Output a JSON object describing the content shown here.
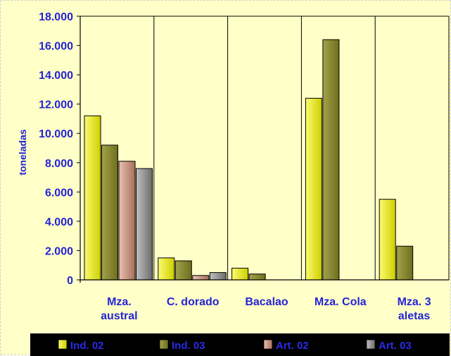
{
  "chart_data": {
    "type": "bar",
    "ylabel": "toneladas",
    "ylim": [
      0,
      18000
    ],
    "y_ticks": [
      "0",
      "2.000",
      "4.000",
      "6.000",
      "8.000",
      "10.000",
      "12.000",
      "14.000",
      "16.000",
      "18.000"
    ],
    "y_tick_values": [
      0,
      2000,
      4000,
      6000,
      8000,
      10000,
      12000,
      14000,
      16000,
      18000
    ],
    "categories": [
      "Mza. austral",
      "C. dorado",
      "Bacalao",
      "Mza. Cola",
      "Mza. 3 aletas"
    ],
    "category_lines": [
      [
        "Mza.",
        "austral"
      ],
      [
        "C. dorado"
      ],
      [
        "Bacalao"
      ],
      [
        "Mza. Cola"
      ],
      [
        "Mza. 3",
        "aletas"
      ]
    ],
    "series": [
      {
        "name": "Ind. 02",
        "values": [
          11200,
          1500,
          800,
          12400,
          5500
        ],
        "color": "#e8e800"
      },
      {
        "name": "Ind. 03",
        "values": [
          9200,
          1300,
          400,
          16400,
          2300
        ],
        "color": "#8a8a2a"
      },
      {
        "name": "Art. 02",
        "values": [
          8100,
          300,
          0,
          0,
          0
        ],
        "color": "#c8907a"
      },
      {
        "name": "Art. 03",
        "values": [
          7600,
          500,
          0,
          0,
          0
        ],
        "color": "#8c8c8c"
      }
    ],
    "grid": "vertical-category-lines",
    "legend_position": "bottom"
  },
  "colors": {
    "background": "#ffffc8",
    "text": "#2424d8",
    "legend_band": "#000000"
  }
}
